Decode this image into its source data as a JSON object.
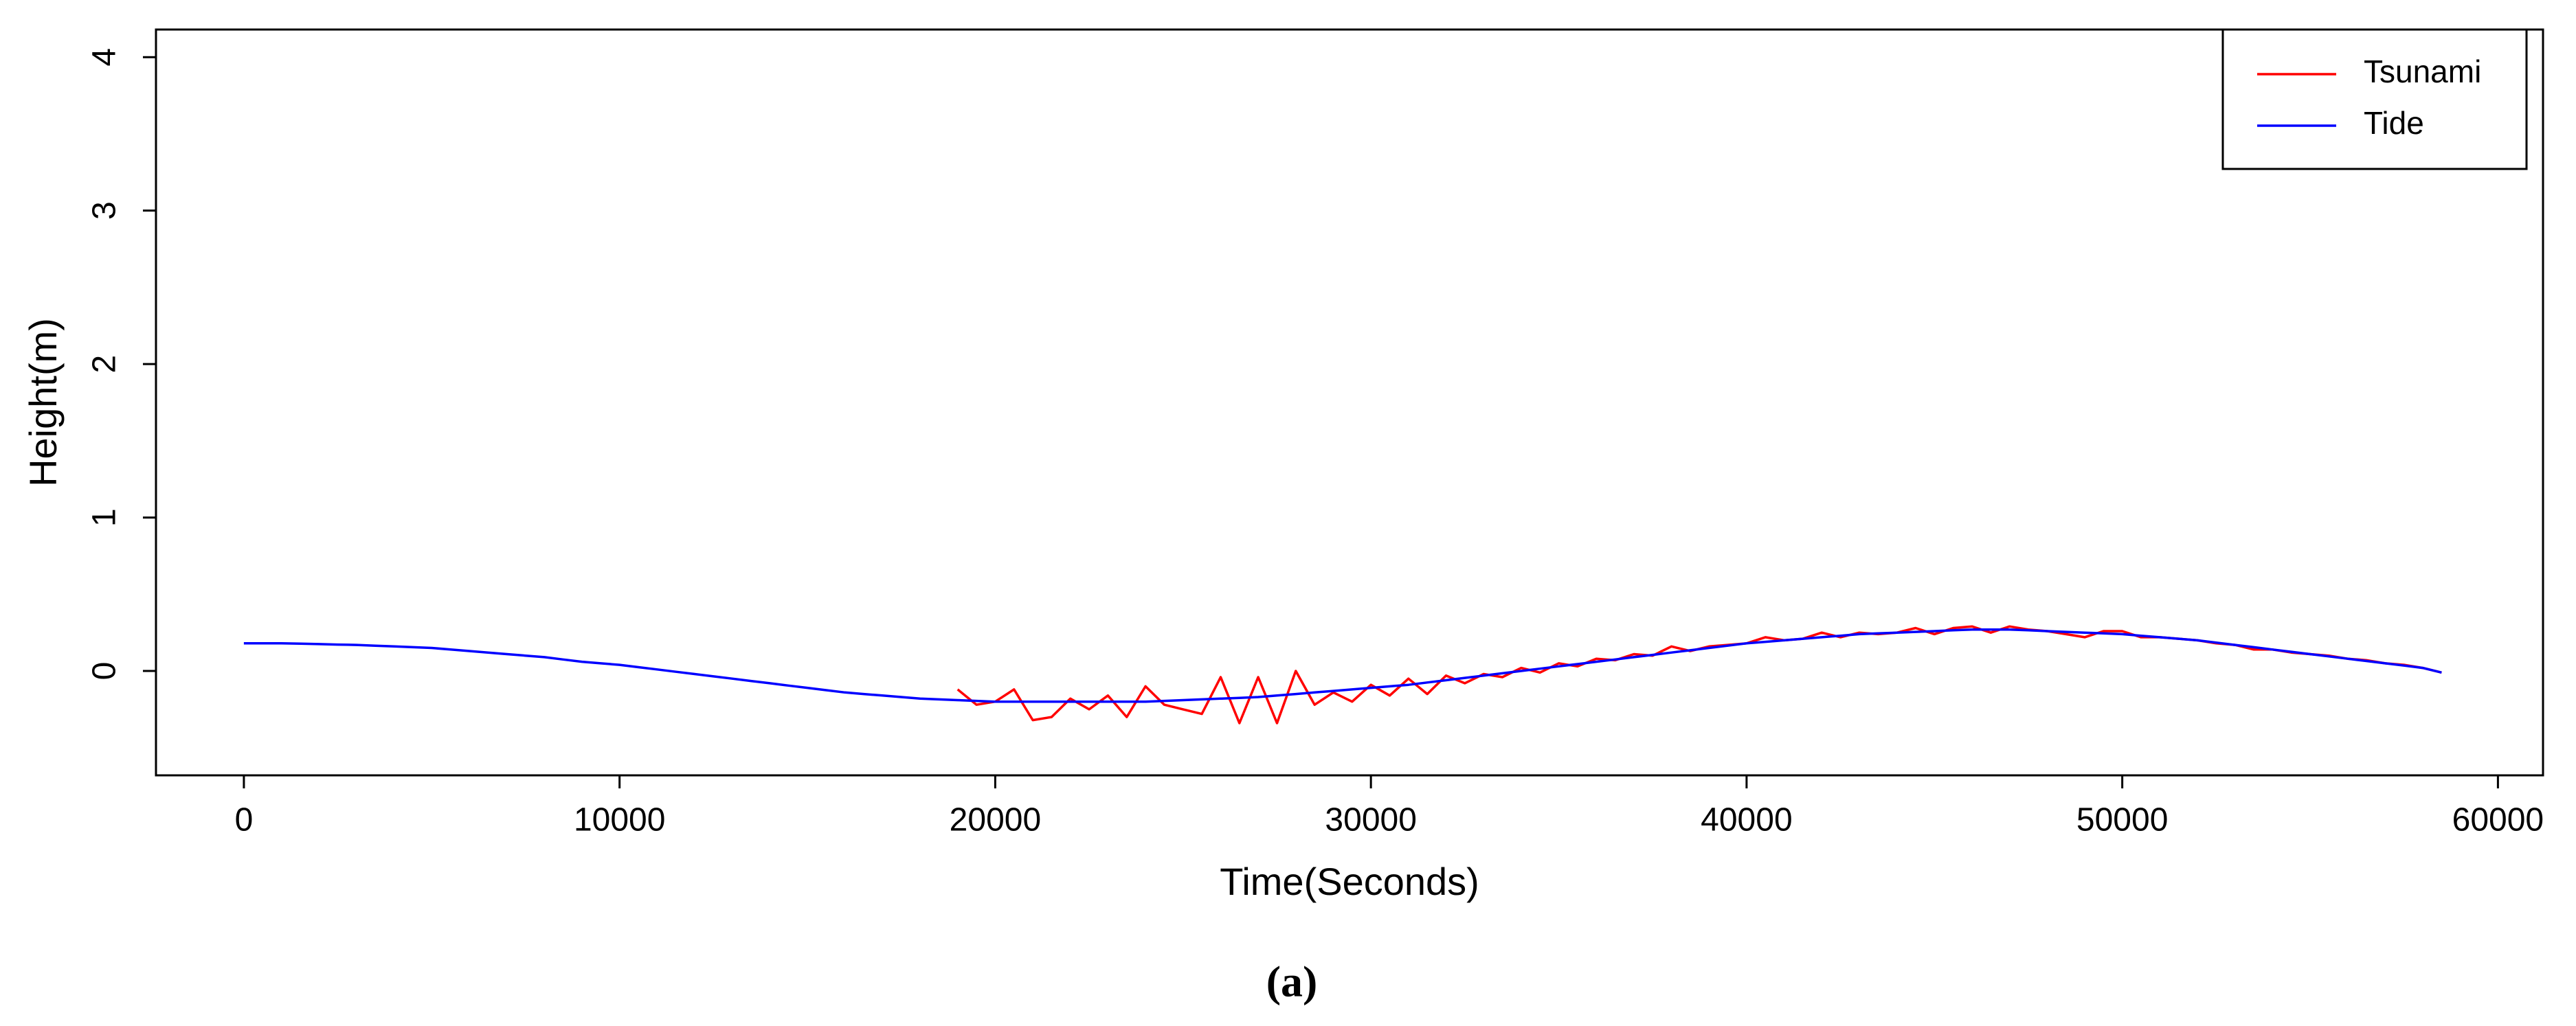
{
  "chart_data": {
    "type": "line",
    "xlabel": "Time(Seconds)",
    "ylabel": "Height(m)",
    "caption": "(a)",
    "legend": "topright",
    "xlim": [
      -2340,
      61200
    ],
    "ylim": [
      -0.68,
      4.18
    ],
    "xticks": [
      0,
      10000,
      20000,
      30000,
      40000,
      50000,
      60000
    ],
    "yticks": [
      0,
      1,
      2,
      3,
      4
    ],
    "x": [
      0,
      500,
      1000,
      1500,
      2000,
      2500,
      3000,
      3500,
      4000,
      4500,
      5000,
      5500,
      6000,
      6500,
      7000,
      7500,
      8000,
      8500,
      9000,
      9500,
      10000,
      10500,
      11000,
      11500,
      12000,
      12500,
      13000,
      13500,
      14000,
      14500,
      15000,
      15500,
      16000,
      16500,
      17000,
      17500,
      18000,
      18500,
      19000,
      19500,
      20000,
      20500,
      21000,
      21500,
      22000,
      22500,
      23000,
      23500,
      24000,
      24500,
      25000,
      25500,
      26000,
      26500,
      27000,
      27500,
      28000,
      28500,
      29000,
      29500,
      30000,
      30500,
      31000,
      31500,
      32000,
      32500,
      33000,
      33500,
      34000,
      34500,
      35000,
      35500,
      36000,
      36500,
      37000,
      37500,
      38000,
      38500,
      39000,
      39500,
      40000,
      40500,
      41000,
      41500,
      42000,
      42500,
      43000,
      43500,
      44000,
      44500,
      45000,
      45500,
      46000,
      46500,
      47000,
      47500,
      48000,
      48500,
      49000,
      49500,
      50000,
      50500,
      51000,
      51500,
      52000,
      52500,
      53000,
      53500,
      54000,
      54500,
      55000,
      55500,
      56000,
      56500,
      57000,
      57500,
      58000,
      58500
    ],
    "series": [
      {
        "name": "Tsunami",
        "color": "#ff0000",
        "values": [
          null,
          null,
          null,
          null,
          null,
          null,
          null,
          null,
          null,
          null,
          null,
          null,
          null,
          null,
          null,
          null,
          null,
          null,
          null,
          null,
          null,
          null,
          null,
          null,
          null,
          null,
          null,
          null,
          null,
          null,
          null,
          null,
          null,
          null,
          null,
          null,
          null,
          null,
          -0.12,
          -0.22,
          -0.2,
          -0.12,
          -0.32,
          -0.3,
          -0.18,
          -0.25,
          -0.16,
          -0.3,
          -0.1,
          -0.22,
          -0.25,
          -0.28,
          -0.04,
          -0.34,
          -0.04,
          -0.34,
          0,
          -0.22,
          -0.14,
          -0.2,
          -0.09,
          -0.16,
          -0.05,
          -0.15,
          -0.03,
          -0.08,
          -0.02,
          -0.04,
          0.02,
          -0.01,
          0.05,
          0.03,
          0.08,
          0.07,
          0.11,
          0.1,
          0.16,
          0.13,
          0.16,
          0.17,
          0.18,
          0.22,
          0.2,
          0.21,
          0.25,
          0.22,
          0.25,
          0.24,
          0.25,
          0.28,
          0.24,
          0.28,
          0.29,
          0.25,
          0.29,
          0.27,
          0.26,
          0.24,
          0.22,
          0.26,
          0.26,
          0.22,
          0.22,
          0.21,
          0.2,
          0.18,
          0.17,
          0.14,
          0.14,
          0.12,
          0.11,
          0.1,
          0.08,
          0.07,
          0.05,
          0.04,
          0.02,
          -0.01
        ]
      },
      {
        "name": "Tide",
        "color": "#0000ff",
        "values": [
          0.18,
          0.18,
          0.18,
          0.178,
          0.175,
          0.172,
          0.17,
          0.165,
          0.16,
          0.155,
          0.15,
          0.14,
          0.13,
          0.12,
          0.11,
          0.1,
          0.09,
          0.075,
          0.06,
          0.05,
          0.04,
          0.025,
          0.01,
          -0.005,
          -0.02,
          -0.035,
          -0.05,
          -0.065,
          -0.08,
          -0.095,
          -0.11,
          -0.125,
          -0.14,
          -0.15,
          -0.16,
          -0.17,
          -0.18,
          -0.185,
          -0.19,
          -0.195,
          -0.2,
          -0.2,
          -0.2,
          -0.2,
          -0.2,
          -0.2,
          -0.2,
          -0.2,
          -0.2,
          -0.195,
          -0.19,
          -0.185,
          -0.18,
          -0.175,
          -0.17,
          -0.16,
          -0.15,
          -0.14,
          -0.13,
          -0.12,
          -0.11,
          -0.1,
          -0.09,
          -0.075,
          -0.06,
          -0.045,
          -0.03,
          -0.015,
          0,
          0.015,
          0.03,
          0.045,
          0.06,
          0.075,
          0.09,
          0.105,
          0.12,
          0.135,
          0.15,
          0.165,
          0.18,
          0.19,
          0.2,
          0.21,
          0.22,
          0.23,
          0.24,
          0.245,
          0.25,
          0.255,
          0.26,
          0.265,
          0.27,
          0.27,
          0.27,
          0.265,
          0.26,
          0.255,
          0.25,
          0.245,
          0.24,
          0.23,
          0.22,
          0.21,
          0.2,
          0.185,
          0.17,
          0.155,
          0.14,
          0.125,
          0.11,
          0.095,
          0.08,
          0.065,
          0.05,
          0.035,
          0.02,
          -0.01
        ]
      }
    ]
  }
}
